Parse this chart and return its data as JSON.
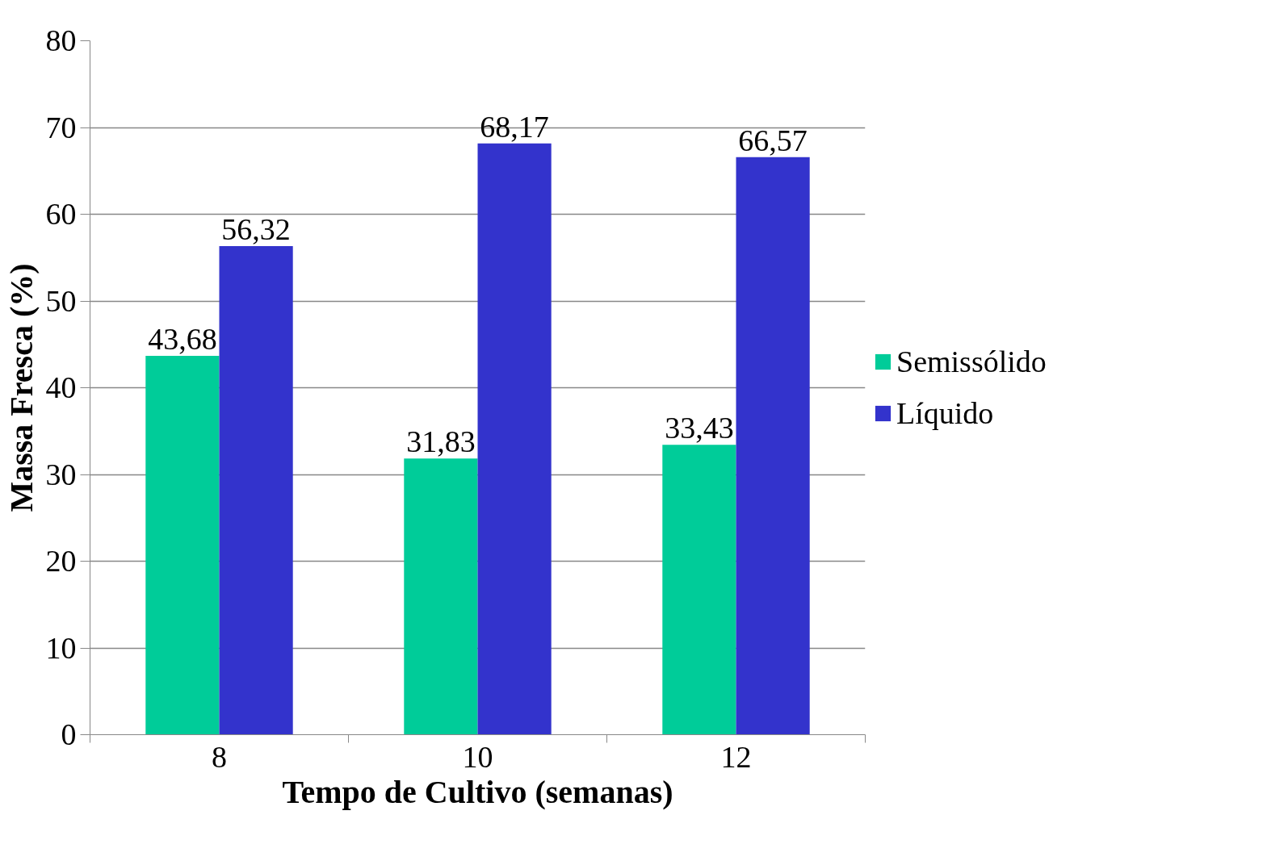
{
  "chart_data": {
    "type": "bar",
    "xlabel": "Tempo de Cultivo (semanas)",
    "ylabel": "Massa Fresca (%)",
    "categories": [
      "8",
      "10",
      "12"
    ],
    "series": [
      {
        "name": "Semissólido",
        "color": "#00cc99",
        "values": [
          43.68,
          31.83,
          33.43
        ],
        "value_labels": [
          "43,68",
          "31,83",
          "33,43"
        ]
      },
      {
        "name": "Líquido",
        "color": "#3333cc",
        "values": [
          56.32,
          68.17,
          66.57
        ],
        "value_labels": [
          "56,32",
          "68,17",
          "66,57"
        ]
      }
    ],
    "ylim": [
      0,
      80
    ],
    "yticks": [
      0,
      10,
      20,
      30,
      40,
      50,
      60,
      70,
      80
    ],
    "grid": "y",
    "legend": "right"
  }
}
